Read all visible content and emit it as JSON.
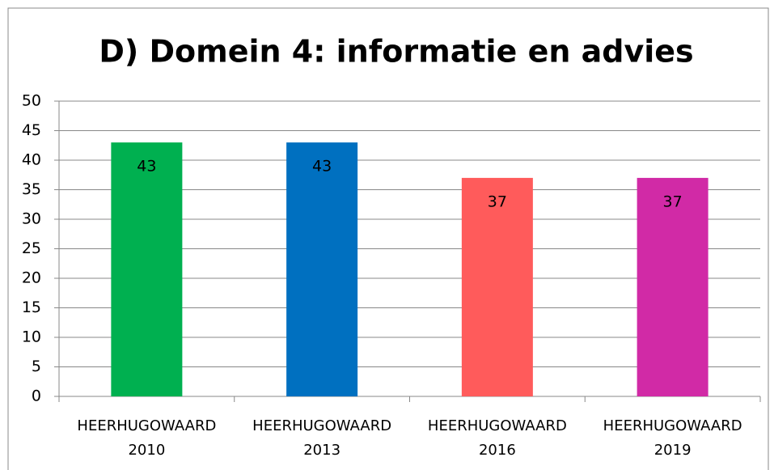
{
  "chart_data": {
    "type": "bar",
    "title": "D) Domein 4: informatie en advies",
    "categories": [
      "HEERHUGOWAARD 2010",
      "HEERHUGOWAARD 2013",
      "HEERHUGOWAARD 2016",
      "HEERHUGOWAARD 2019"
    ],
    "values": [
      43,
      43,
      37,
      37
    ],
    "colors": [
      "#00b050",
      "#0070c0",
      "#ff5b5b",
      "#d12aa6"
    ],
    "ylim": [
      0,
      50
    ],
    "yticks": [
      0,
      5,
      10,
      15,
      20,
      25,
      30,
      35,
      40,
      45,
      50
    ],
    "grid": true
  }
}
